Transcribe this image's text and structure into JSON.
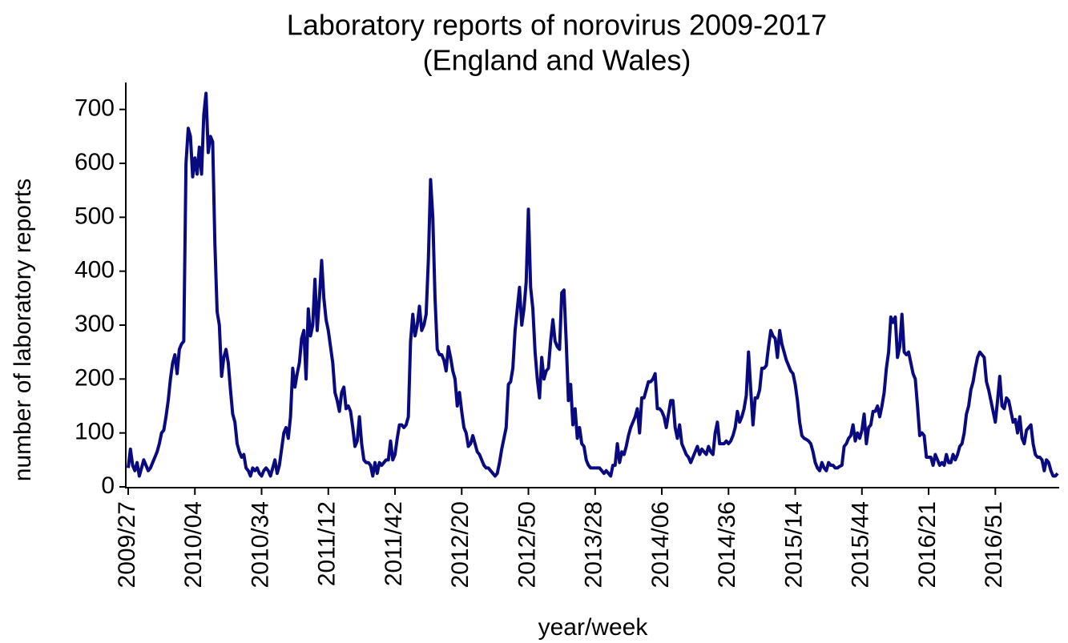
{
  "chart_data": {
    "type": "line",
    "title": [
      "Laboratory reports of norovirus 2009-2017",
      "(England and Wales)"
    ],
    "x_label": "year/week",
    "y_label": "number of laboratory reports",
    "color": "#0a0a80",
    "ylim": [
      0,
      750
    ],
    "yticks": [
      0,
      100,
      200,
      300,
      400,
      500,
      600,
      700
    ],
    "categories": [
      "2009/27",
      null,
      null,
      null,
      null,
      null,
      null,
      null,
      null,
      null,
      null,
      null,
      null,
      null,
      null,
      null,
      null,
      null,
      null,
      null,
      null,
      null,
      null,
      null,
      null,
      null,
      null,
      null,
      null,
      null,
      "2010/04",
      null,
      null,
      null,
      null,
      null,
      null,
      null,
      null,
      null,
      null,
      null,
      null,
      null,
      null,
      null,
      null,
      null,
      null,
      null,
      null,
      null,
      null,
      null,
      null,
      null,
      null,
      null,
      null,
      null,
      "2010/34",
      null,
      null,
      null,
      null,
      null,
      null,
      null,
      null,
      null,
      null,
      null,
      null,
      null,
      null,
      null,
      null,
      null,
      null,
      null,
      null,
      null,
      null,
      null,
      null,
      null,
      null,
      null,
      null,
      null,
      "2011/12",
      null,
      null,
      null,
      null,
      null,
      null,
      null,
      null,
      null,
      null,
      null,
      null,
      null,
      null,
      null,
      null,
      null,
      null,
      null,
      null,
      null,
      null,
      null,
      null,
      null,
      null,
      null,
      null,
      null,
      "2011/42",
      null,
      null,
      null,
      null,
      null,
      null,
      null,
      null,
      null,
      null,
      null,
      null,
      null,
      null,
      null,
      null,
      null,
      null,
      null,
      null,
      null,
      null,
      null,
      null,
      null,
      null,
      null,
      null,
      null,
      "2012/20",
      null,
      null,
      null,
      null,
      null,
      null,
      null,
      null,
      null,
      null,
      null,
      null,
      null,
      null,
      null,
      null,
      null,
      null,
      null,
      null,
      null,
      null,
      null,
      null,
      null,
      null,
      null,
      null,
      null,
      "2012/50",
      null,
      null,
      null,
      null,
      null,
      null,
      null,
      null,
      null,
      null,
      null,
      null,
      null,
      null,
      null,
      null,
      null,
      null,
      null,
      null,
      null,
      null,
      null,
      null,
      null,
      null,
      null,
      null,
      null,
      "2013/28",
      null,
      null,
      null,
      null,
      null,
      null,
      null,
      null,
      null,
      null,
      null,
      null,
      null,
      null,
      null,
      null,
      null,
      null,
      null,
      null,
      null,
      null,
      null,
      null,
      null,
      null,
      null,
      null,
      null,
      "2014/06",
      null,
      null,
      null,
      null,
      null,
      null,
      null,
      null,
      null,
      null,
      null,
      null,
      null,
      null,
      null,
      null,
      null,
      null,
      null,
      null,
      null,
      null,
      null,
      null,
      null,
      null,
      null,
      null,
      null,
      "2014/36",
      null,
      null,
      null,
      null,
      null,
      null,
      null,
      null,
      null,
      null,
      null,
      null,
      null,
      null,
      null,
      null,
      null,
      null,
      null,
      null,
      null,
      null,
      null,
      null,
      null,
      null,
      null,
      null,
      null,
      "2015/14",
      null,
      null,
      null,
      null,
      null,
      null,
      null,
      null,
      null,
      null,
      null,
      null,
      null,
      null,
      null,
      null,
      null,
      null,
      null,
      null,
      null,
      null,
      null,
      null,
      null,
      null,
      null,
      null,
      null,
      "2015/44",
      null,
      null,
      null,
      null,
      null,
      null,
      null,
      null,
      null,
      null,
      null,
      null,
      null,
      null,
      null,
      null,
      null,
      null,
      null,
      null,
      null,
      null,
      null,
      null,
      null,
      null,
      null,
      null,
      null,
      "2016/21",
      null,
      null,
      null,
      null,
      null,
      null,
      null,
      null,
      null,
      null,
      null,
      null,
      null,
      null,
      null,
      null,
      null,
      null,
      null,
      null,
      null,
      null,
      null,
      null,
      null,
      null,
      null,
      null,
      null,
      "2016/51",
      null,
      null,
      null,
      null,
      null,
      null,
      null,
      null,
      null,
      null,
      null,
      null,
      null,
      null,
      null,
      null,
      null,
      null,
      null,
      null,
      null,
      null,
      null,
      null,
      null,
      null,
      null,
      null
    ],
    "values": [
      35,
      70,
      40,
      30,
      45,
      20,
      35,
      50,
      40,
      30,
      35,
      45,
      55,
      65,
      80,
      100,
      105,
      130,
      160,
      200,
      230,
      245,
      210,
      255,
      265,
      270,
      600,
      665,
      650,
      575,
      610,
      580,
      630,
      580,
      690,
      730,
      620,
      650,
      640,
      450,
      325,
      300,
      205,
      240,
      255,
      230,
      180,
      135,
      120,
      80,
      65,
      55,
      60,
      35,
      30,
      20,
      35,
      30,
      35,
      25,
      20,
      30,
      35,
      30,
      20,
      35,
      50,
      25,
      40,
      70,
      100,
      110,
      90,
      130,
      220,
      185,
      210,
      230,
      275,
      290,
      200,
      330,
      280,
      300,
      385,
      290,
      350,
      420,
      350,
      310,
      290,
      260,
      230,
      175,
      160,
      140,
      175,
      185,
      145,
      150,
      140,
      110,
      75,
      85,
      130,
      80,
      50,
      45,
      45,
      40,
      20,
      45,
      25,
      45,
      40,
      45,
      50,
      50,
      85,
      50,
      60,
      90,
      115,
      115,
      110,
      115,
      130,
      270,
      320,
      280,
      300,
      335,
      290,
      300,
      320,
      420,
      570,
      500,
      350,
      255,
      245,
      245,
      235,
      215,
      260,
      240,
      215,
      200,
      150,
      175,
      140,
      110,
      100,
      75,
      80,
      95,
      80,
      65,
      60,
      50,
      40,
      35,
      35,
      30,
      25,
      20,
      25,
      45,
      70,
      90,
      110,
      190,
      195,
      220,
      290,
      330,
      370,
      300,
      330,
      380,
      515,
      370,
      330,
      250,
      200,
      165,
      240,
      200,
      215,
      220,
      270,
      310,
      270,
      260,
      255,
      360,
      365,
      270,
      160,
      190,
      115,
      145,
      90,
      110,
      80,
      75,
      50,
      40,
      35,
      35,
      35,
      35,
      35,
      30,
      25,
      30,
      25,
      20,
      40,
      40,
      80,
      45,
      65,
      60,
      75,
      95,
      110,
      120,
      130,
      145,
      100,
      165,
      165,
      180,
      195,
      195,
      200,
      210,
      145,
      145,
      140,
      130,
      110,
      135,
      160,
      160,
      110,
      90,
      115,
      80,
      70,
      60,
      55,
      45,
      55,
      65,
      75,
      60,
      70,
      65,
      60,
      75,
      65,
      60,
      100,
      120,
      80,
      80,
      80,
      85,
      80,
      85,
      95,
      110,
      140,
      120,
      130,
      145,
      170,
      250,
      180,
      115,
      165,
      165,
      180,
      220,
      220,
      225,
      260,
      290,
      280,
      275,
      240,
      290,
      265,
      250,
      235,
      225,
      215,
      210,
      190,
      160,
      120,
      95,
      90,
      88,
      85,
      80,
      65,
      45,
      35,
      30,
      45,
      35,
      30,
      45,
      40,
      40,
      35,
      35,
      38,
      40,
      75,
      80,
      90,
      95,
      115,
      85,
      100,
      90,
      105,
      135,
      80,
      110,
      115,
      140,
      140,
      150,
      130,
      150,
      175,
      220,
      250,
      315,
      305,
      315,
      240,
      260,
      320,
      250,
      245,
      250,
      230,
      210,
      200,
      150,
      95,
      100,
      95,
      55,
      55,
      55,
      40,
      60,
      50,
      40,
      45,
      40,
      60,
      45,
      45,
      60,
      50,
      60,
      75,
      80,
      100,
      135,
      150,
      180,
      195,
      220,
      240,
      250,
      245,
      240,
      195,
      180,
      160,
      140,
      120,
      160,
      205,
      150,
      145,
      165,
      160,
      140,
      120,
      125,
      100,
      130,
      90,
      80,
      105,
      110,
      115,
      80,
      60,
      55,
      55,
      50,
      30,
      50,
      45,
      30,
      20,
      20,
      25
    ]
  }
}
